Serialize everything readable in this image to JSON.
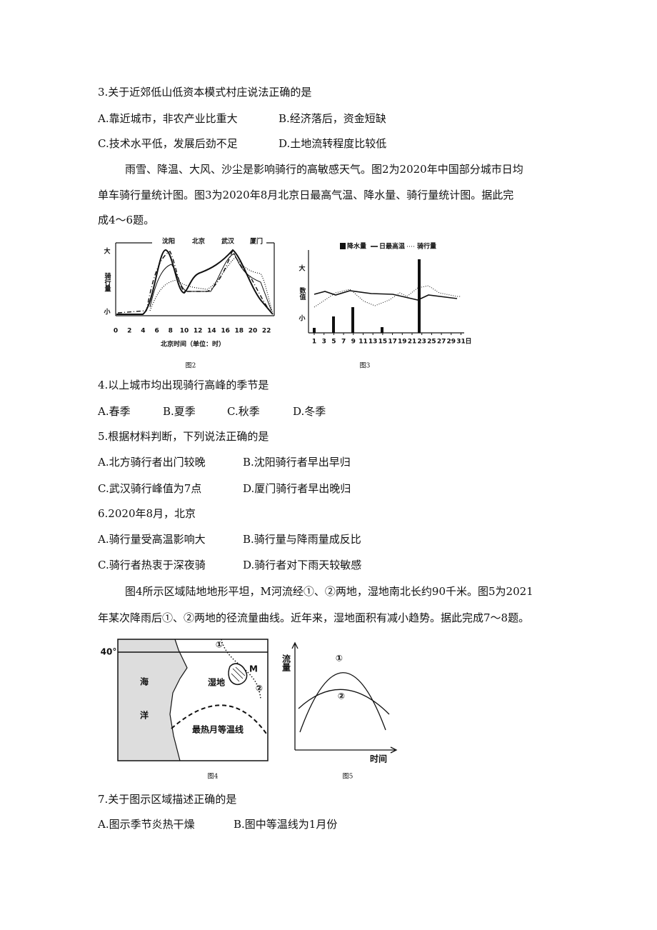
{
  "q3": {
    "stem": "3.关于近郊低山低资本模式村庄说法正确的是",
    "options": [
      "A.靠近城市，非农产业比重大",
      "B.经济落后，资金短缺",
      "C.技术水平低，发展后劲不足",
      "D.土地流转程度比较低"
    ]
  },
  "passage1": [
    "雨雪、降温、大风、沙尘是影响骑行的高敏感天气。图2为2020年中国部分城市日均",
    "单车骑行量统计图。图3为2020年8月北京日最高气温、降水量、骑行量统计图。据此完",
    "成4～6题。"
  ],
  "figure2": {
    "legend": [
      "沈阳",
      "北京",
      "武汉",
      "厦门"
    ],
    "y_top": "大",
    "y_label": "骑行量",
    "y_bottom": "小",
    "xticks": [
      "0",
      "2",
      "4",
      "6",
      "8",
      "10",
      "12",
      "14",
      "16",
      "18",
      "20",
      "22"
    ],
    "x_label": "北京时间（单位：时）",
    "caption": "图2"
  },
  "figure3": {
    "legend": [
      "降水量",
      "日最高温",
      "骑行量"
    ],
    "y_top": "大",
    "y_label": "数值",
    "y_bottom": "小",
    "xticks": [
      "1",
      "3",
      "5",
      "7",
      "9",
      "11",
      "13",
      "15",
      "17",
      "19",
      "21",
      "23",
      "25",
      "27",
      "29",
      "31"
    ],
    "x_unit": "日",
    "caption": "图3"
  },
  "q4": {
    "stem": "4.以上城市均出现骑行高峰的季节是",
    "options": [
      "A.春季",
      "B.夏季",
      "C.秋季",
      "D.冬季"
    ]
  },
  "q5": {
    "stem": "5.根据材料判断，下列说法正确的是",
    "options": [
      "A.北方骑行者出门较晚",
      "B.沈阳骑行者早出早归",
      "C.武汉骑行峰值为7点",
      "D.厦门骑行者早出晚归"
    ]
  },
  "q6": {
    "stem": "6.2020年8月，北京",
    "options": [
      "A.骑行量受高温影响大",
      "B.骑行量与降雨量成反比",
      "C.骑行者热衷于深夜骑",
      "D.骑行者对下雨天较敏感"
    ]
  },
  "passage2": [
    "图4所示区域陆地地形平坦，M河流经①、②两地，湿地南北长约90千米。图5为2021",
    "年某次降雨后①、②两地的径流量曲线。近年来，湿地面积有减小趋势。据此完成7～8题。"
  ],
  "figure4": {
    "latitude": "40°",
    "point1": "①",
    "river": "M",
    "wetland": "湿地",
    "point2": "②",
    "sea1": "海",
    "sea2": "洋",
    "isotherm": "最热月等温线",
    "caption": "图4"
  },
  "figure5": {
    "y_label": "流量",
    "x_label": "时间",
    "curve1": "①",
    "curve2": "②",
    "caption": "图5"
  },
  "q7": {
    "stem": "7.关于图示区域描述正确的是",
    "options": [
      "A.图示季节炎热干燥",
      "B.图中等温线为1月份"
    ]
  }
}
